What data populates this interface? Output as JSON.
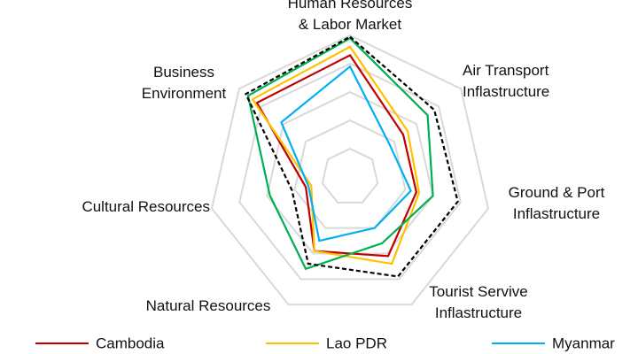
{
  "chart_data": {
    "type": "radar",
    "categories": [
      "Human Resources\n& Labor Market",
      "Air Transport\nInflastructure",
      "Ground & Port\nInflastructure",
      "Tourist Servive\nInflastructure",
      "Natural Resources",
      "Cultural Resources",
      "Business\nEnvironment"
    ],
    "rlim": [
      0,
      5
    ],
    "rticks": [
      1,
      2,
      3,
      4,
      5
    ],
    "grid": true,
    "legend": "bottom",
    "series": [
      {
        "name": "Cambodia",
        "color": "#c00000",
        "values": [
          4.3,
          2.4,
          2.4,
          3.1,
          2.9,
          1.6,
          4.2
        ]
      },
      {
        "name": "Lao PDR",
        "color": "#ffc000",
        "values": [
          4.6,
          2.6,
          2.5,
          3.4,
          2.9,
          1.4,
          4.4
        ]
      },
      {
        "name": "Myanmar",
        "color": "#00b0f0",
        "values": [
          3.9,
          1.8,
          2.2,
          2.0,
          2.5,
          1.5,
          3.1
        ]
      },
      {
        "color": "#00b050",
        "values": [
          4.9,
          3.5,
          3.0,
          2.6,
          3.6,
          2.9,
          4.6
        ]
      },
      {
        "color": "#000000",
        "dashed": true,
        "values": [
          4.95,
          3.8,
          3.9,
          3.9,
          3.4,
          2.1,
          4.7
        ]
      }
    ]
  }
}
